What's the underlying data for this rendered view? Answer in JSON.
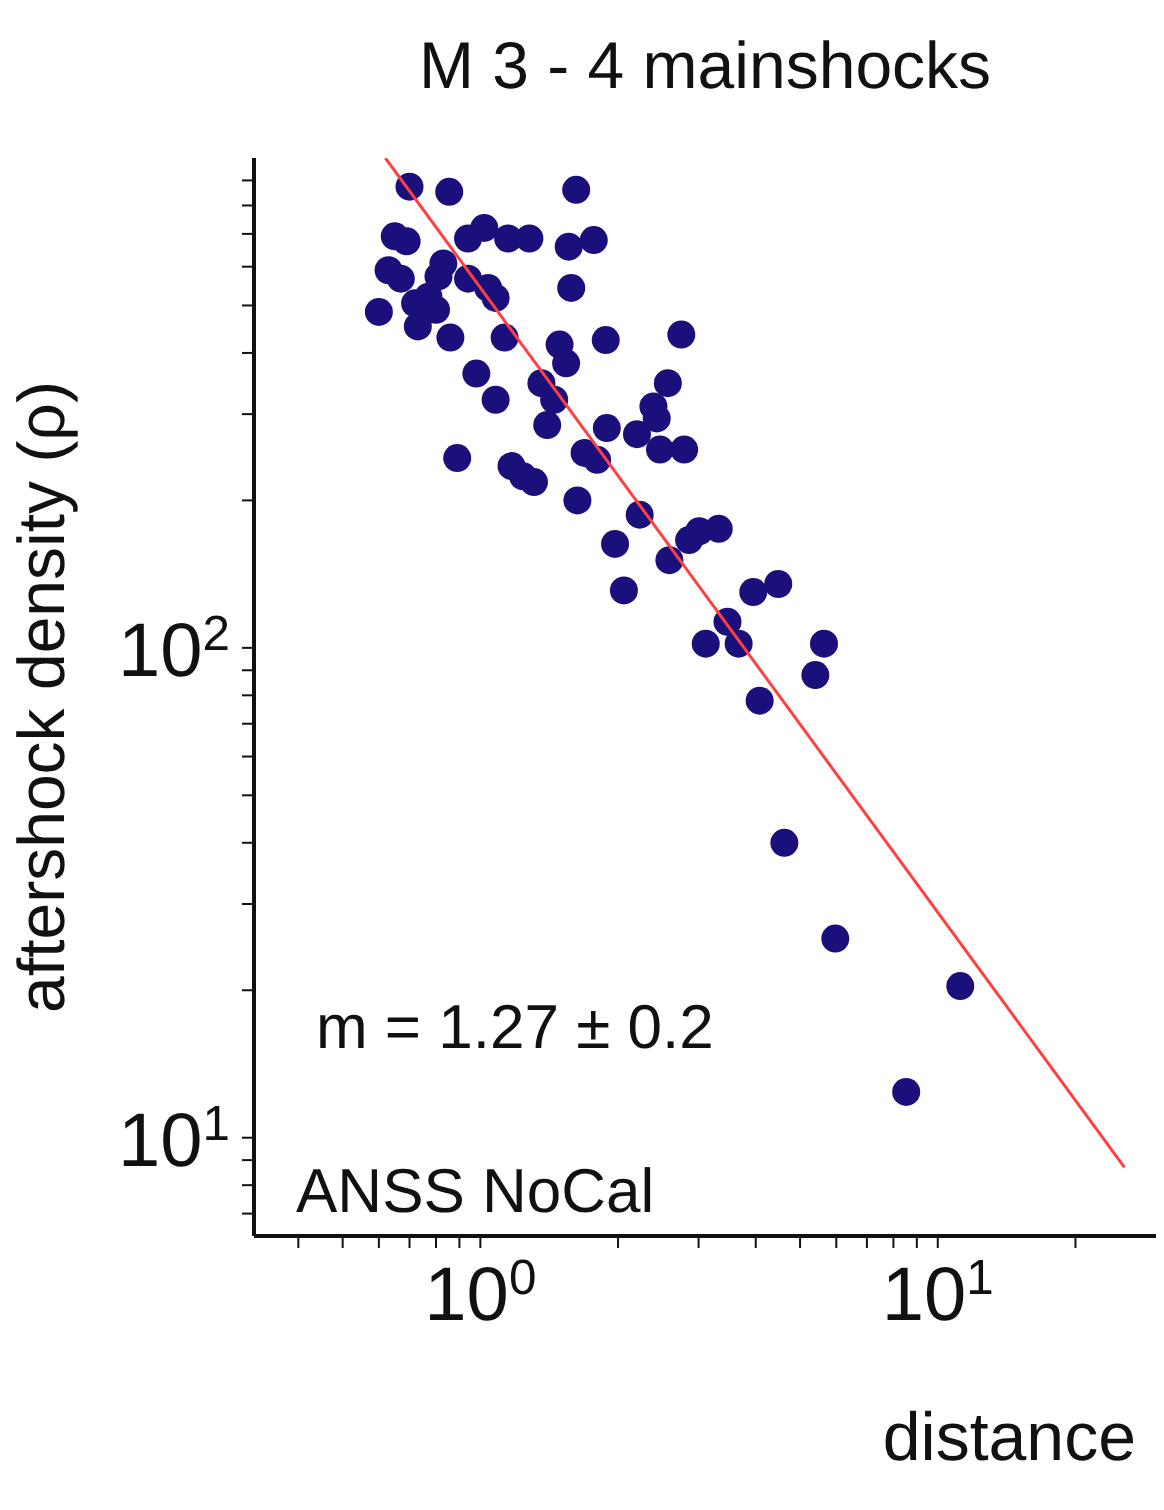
{
  "chart_data": {
    "type": "scatter",
    "title": "M 3 - 4 mainshocks",
    "xlabel": "distance",
    "ylabel": "aftershock density (ρ)",
    "annotations": [
      "m = 1.27 ± 0.2",
      "ANSS NoCal"
    ],
    "log": "xy",
    "grid": false,
    "marker": "circle",
    "xlim": [
      0.32,
      30
    ],
    "ylim": [
      6.3,
      1000
    ],
    "xticks": [
      {
        "value": 0.4,
        "label": null
      },
      {
        "value": 0.5,
        "label": null
      },
      {
        "value": 0.6,
        "label": null
      },
      {
        "value": 0.7,
        "label": null
      },
      {
        "value": 0.8,
        "label": null
      },
      {
        "value": 0.9,
        "label": null
      },
      {
        "value": 1,
        "label": "10$^{0}$"
      },
      {
        "value": 2,
        "label": null
      },
      {
        "value": 3,
        "label": null
      },
      {
        "value": 4,
        "label": null
      },
      {
        "value": 5,
        "label": null
      },
      {
        "value": 6,
        "label": null
      },
      {
        "value": 7,
        "label": null
      },
      {
        "value": 8,
        "label": null
      },
      {
        "value": 9,
        "label": null
      },
      {
        "value": 10,
        "label": "10$^{1}$"
      },
      {
        "value": 20,
        "label": null
      }
    ],
    "yticks": [
      {
        "value": 7,
        "label": null
      },
      {
        "value": 8,
        "label": null
      },
      {
        "value": 9,
        "label": null
      },
      {
        "value": 10,
        "label": "10$^{1}$"
      },
      {
        "value": 20,
        "label": null
      },
      {
        "value": 30,
        "label": null
      },
      {
        "value": 40,
        "label": null
      },
      {
        "value": 50,
        "label": null
      },
      {
        "value": 60,
        "label": null
      },
      {
        "value": 70,
        "label": null
      },
      {
        "value": 80,
        "label": null
      },
      {
        "value": 90,
        "label": null
      },
      {
        "value": 100,
        "label": "10$^{2}$"
      },
      {
        "value": 200,
        "label": null
      },
      {
        "value": 300,
        "label": null
      },
      {
        "value": 400,
        "label": null
      },
      {
        "value": 500,
        "label": null
      },
      {
        "value": 600,
        "label": null
      },
      {
        "value": 700,
        "label": null
      },
      {
        "value": 800,
        "label": null
      },
      {
        "value": 900,
        "label": null
      }
    ],
    "series": [
      {
        "color": "#1b0f7c",
        "x": [
          0.7,
          0.855,
          1.62,
          0.65,
          0.69,
          0.94,
          1.02,
          1.15,
          1.28,
          1.56,
          1.77,
          0.63,
          0.67,
          0.83,
          0.81,
          0.94,
          1.04,
          1.08,
          1.58,
          0.6,
          0.72,
          0.77,
          0.73,
          0.8,
          0.86,
          1.13,
          1.49,
          1.54,
          1.88,
          2.75,
          0.98,
          1.08,
          1.36,
          1.45,
          1.4,
          1.89,
          2.2,
          2.39,
          2.43,
          2.57,
          2.47,
          2.79,
          0.89,
          1.17,
          1.24,
          1.31,
          1.69,
          1.8,
          1.63,
          2.23,
          1.97,
          2.59,
          2.86,
          3.01,
          3.32,
          2.06,
          3.95,
          4.48,
          3.47,
          3.11,
          3.67,
          5.64,
          5.4,
          4.08,
          4.62,
          5.97,
          11.2,
          8.53
        ],
        "values": [
          874,
          853,
          861,
          692,
          676,
          685,
          720,
          685,
          685,
          659,
          680,
          590,
          567,
          609,
          573,
          567,
          543,
          518,
          543,
          485,
          505,
          521,
          453,
          490,
          430,
          430,
          416,
          381,
          425,
          436,
          363,
          321,
          347,
          321,
          285,
          281,
          273,
          311,
          294,
          347,
          254,
          254,
          244,
          235,
          224,
          218,
          250,
          242,
          200,
          187,
          163,
          151,
          166,
          173,
          175,
          131,
          130,
          135,
          113,
          102,
          102,
          102,
          88,
          78,
          40,
          25.5,
          20.4,
          12.4
        ]
      },
      {
        "type": "line",
        "marker": "none",
        "line_style": "solid",
        "color": "#ff4040",
        "x": [
          0.62,
          25.6
        ],
        "values": [
          1000,
          8.7
        ]
      }
    ]
  }
}
